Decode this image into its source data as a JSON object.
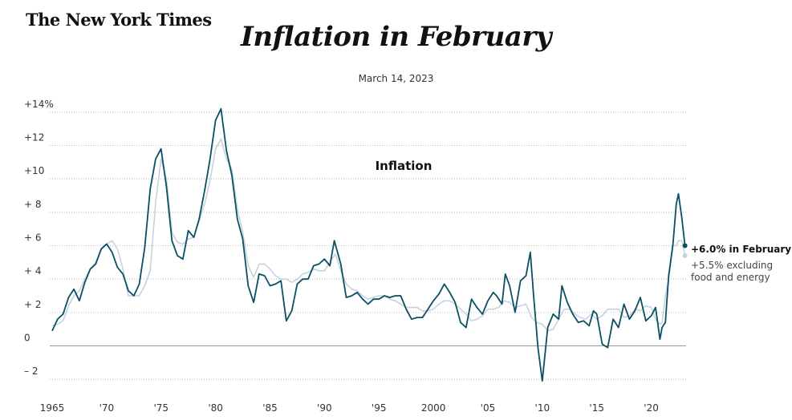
{
  "header": {
    "logo": "The New York Times",
    "title": "Inflation in February",
    "date": "March 14, 2023"
  },
  "chart_data": {
    "type": "line",
    "title": "Inflation in February",
    "chart_label": "Inflation",
    "xlim": [
      1965,
      2023.2
    ],
    "ylim": [
      -3,
      15
    ],
    "ytick_labels": [
      {
        "value": 14,
        "label": "+14%"
      },
      {
        "value": 12,
        "label": "+12"
      },
      {
        "value": 10,
        "label": "+10"
      },
      {
        "value": 8,
        "label": "+ 8"
      },
      {
        "value": 6,
        "label": "+ 6"
      },
      {
        "value": 4,
        "label": "+ 4"
      },
      {
        "value": 2,
        "label": "+ 2"
      },
      {
        "value": 0,
        "label": "0"
      },
      {
        "value": -2,
        "label": "– 2"
      }
    ],
    "xtick_labels": [
      {
        "value": 1965,
        "label": "1965"
      },
      {
        "value": 1970,
        "label": "'70"
      },
      {
        "value": 1975,
        "label": "'75"
      },
      {
        "value": 1980,
        "label": "'80"
      },
      {
        "value": 1985,
        "label": "'85"
      },
      {
        "value": 1990,
        "label": "'90"
      },
      {
        "value": 1995,
        "label": "'95"
      },
      {
        "value": 2000,
        "label": "2000"
      },
      {
        "value": 2005,
        "label": "'05"
      },
      {
        "value": 2010,
        "label": "'10"
      },
      {
        "value": 2015,
        "label": "'15"
      },
      {
        "value": 2020,
        "label": "'20"
      }
    ],
    "grid": true,
    "series": [
      {
        "key": "all",
        "color": "#0b4f63",
        "x": [
          1965.0,
          1965.5,
          1966.0,
          1966.5,
          1967.0,
          1967.5,
          1968.0,
          1968.5,
          1969.0,
          1969.5,
          1970.0,
          1970.5,
          1971.0,
          1971.5,
          1972.0,
          1972.5,
          1973.0,
          1973.5,
          1974.0,
          1974.5,
          1975.0,
          1975.5,
          1976.0,
          1976.5,
          1977.0,
          1977.5,
          1978.0,
          1978.5,
          1979.0,
          1979.5,
          1980.0,
          1980.5,
          1981.0,
          1981.5,
          1982.0,
          1982.5,
          1983.0,
          1983.5,
          1984.0,
          1984.5,
          1985.0,
          1985.5,
          1986.0,
          1986.5,
          1987.0,
          1987.5,
          1988.0,
          1988.5,
          1989.0,
          1989.5,
          1990.0,
          1990.5,
          1990.9,
          1991.5,
          1992.0,
          1992.5,
          1993.0,
          1993.5,
          1994.0,
          1994.5,
          1995.0,
          1995.5,
          1996.0,
          1996.5,
          1997.0,
          1997.5,
          1998.0,
          1998.5,
          1999.0,
          1999.5,
          2000.0,
          2000.5,
          2001.0,
          2001.5,
          2002.0,
          2002.5,
          2003.0,
          2003.5,
          2004.0,
          2004.5,
          2005.0,
          2005.5,
          2005.8,
          2006.3,
          2006.6,
          2007.0,
          2007.5,
          2008.0,
          2008.5,
          2008.9,
          2009.2,
          2009.6,
          2010.0,
          2010.5,
          2011.0,
          2011.5,
          2011.8,
          2012.3,
          2012.8,
          2013.3,
          2013.8,
          2014.3,
          2014.7,
          2015.0,
          2015.5,
          2016.0,
          2016.5,
          2017.0,
          2017.5,
          2018.0,
          2018.5,
          2019.0,
          2019.5,
          2020.0,
          2020.4,
          2020.8,
          2021.0,
          2021.3,
          2021.6,
          2022.0,
          2022.3,
          2022.5,
          2022.8,
          2023.1
        ],
        "values": [
          0.9,
          1.6,
          1.9,
          2.9,
          3.4,
          2.7,
          3.8,
          4.6,
          4.9,
          5.8,
          6.1,
          5.6,
          4.7,
          4.3,
          3.3,
          3.0,
          3.7,
          5.9,
          9.4,
          11.2,
          11.8,
          9.5,
          6.3,
          5.4,
          5.2,
          6.9,
          6.5,
          7.6,
          9.3,
          11.2,
          13.5,
          14.2,
          11.7,
          10.2,
          7.6,
          6.4,
          3.6,
          2.6,
          4.3,
          4.2,
          3.6,
          3.7,
          3.9,
          1.5,
          2.1,
          3.7,
          4.0,
          4.0,
          4.8,
          4.9,
          5.2,
          4.8,
          6.3,
          4.9,
          2.9,
          3.0,
          3.2,
          2.8,
          2.5,
          2.8,
          2.8,
          3.0,
          2.9,
          3.0,
          3.0,
          2.2,
          1.6,
          1.7,
          1.7,
          2.2,
          2.7,
          3.1,
          3.7,
          3.2,
          2.6,
          1.4,
          1.1,
          2.8,
          2.3,
          1.9,
          2.7,
          3.2,
          3.0,
          2.5,
          4.3,
          3.6,
          2.0,
          3.9,
          4.2,
          5.6,
          3.0,
          -0.1,
          -2.1,
          1.1,
          1.9,
          1.6,
          3.6,
          2.6,
          1.9,
          1.4,
          1.5,
          1.2,
          2.1,
          1.9,
          0.1,
          -0.1,
          1.6,
          1.1,
          2.5,
          1.6,
          2.1,
          2.9,
          1.5,
          1.8,
          2.3,
          0.4,
          1.1,
          1.4,
          4.2,
          6.1,
          8.5,
          9.1,
          7.7,
          6.0
        ]
      },
      {
        "key": "core",
        "color": "#c7d2e0",
        "x": [
          1965.0,
          1965.5,
          1966.0,
          1966.5,
          1967.0,
          1967.5,
          1968.0,
          1968.5,
          1969.0,
          1969.5,
          1970.0,
          1970.5,
          1971.0,
          1971.5,
          1972.0,
          1972.5,
          1973.0,
          1973.5,
          1974.0,
          1974.5,
          1975.0,
          1975.5,
          1976.0,
          1976.5,
          1977.0,
          1977.5,
          1978.0,
          1978.5,
          1979.0,
          1979.5,
          1980.0,
          1980.5,
          1981.0,
          1981.5,
          1982.0,
          1982.5,
          1983.0,
          1983.5,
          1984.0,
          1984.5,
          1985.0,
          1985.5,
          1986.0,
          1986.5,
          1987.0,
          1987.5,
          1988.0,
          1988.5,
          1989.0,
          1989.5,
          1990.0,
          1990.5,
          1991.0,
          1991.5,
          1992.0,
          1992.5,
          1993.0,
          1993.5,
          1994.0,
          1994.5,
          1995.0,
          1995.5,
          1996.0,
          1996.5,
          1997.0,
          1997.5,
          1998.0,
          1998.5,
          1999.0,
          1999.5,
          2000.0,
          2000.5,
          2001.0,
          2001.5,
          2002.0,
          2002.5,
          2003.0,
          2003.5,
          2004.0,
          2004.5,
          2005.0,
          2005.5,
          2006.0,
          2006.5,
          2007.0,
          2007.5,
          2008.0,
          2008.5,
          2009.0,
          2009.5,
          2010.0,
          2010.5,
          2011.0,
          2011.5,
          2012.0,
          2012.5,
          2013.0,
          2013.5,
          2014.0,
          2014.5,
          2015.0,
          2015.5,
          2016.0,
          2016.5,
          2017.0,
          2017.5,
          2018.0,
          2018.5,
          2019.0,
          2019.5,
          2020.0,
          2020.4,
          2020.8,
          2021.0,
          2021.3,
          2021.6,
          2022.0,
          2022.3,
          2022.5,
          2022.8,
          2023.1
        ],
        "values": [
          1.2,
          1.3,
          1.5,
          2.4,
          3.0,
          3.3,
          4.0,
          4.6,
          5.0,
          5.8,
          6.1,
          6.3,
          5.8,
          4.6,
          3.0,
          3.0,
          3.0,
          3.6,
          4.5,
          8.6,
          11.2,
          10.0,
          6.8,
          6.2,
          6.1,
          6.4,
          6.5,
          7.5,
          8.5,
          9.9,
          11.8,
          12.4,
          11.2,
          10.6,
          8.2,
          6.8,
          4.8,
          4.1,
          4.9,
          4.9,
          4.6,
          4.2,
          4.0,
          4.0,
          3.8,
          4.0,
          4.3,
          4.4,
          4.6,
          4.5,
          4.5,
          5.0,
          5.5,
          4.5,
          3.7,
          3.4,
          3.3,
          3.0,
          2.8,
          2.9,
          3.0,
          3.0,
          2.8,
          2.7,
          2.5,
          2.3,
          2.3,
          2.3,
          2.1,
          2.1,
          2.2,
          2.5,
          2.7,
          2.7,
          2.5,
          2.2,
          1.9,
          1.5,
          1.6,
          1.8,
          2.2,
          2.2,
          2.3,
          2.7,
          2.6,
          2.3,
          2.4,
          2.5,
          1.7,
          1.4,
          1.3,
          0.9,
          1.0,
          1.6,
          2.2,
          2.2,
          1.9,
          1.7,
          1.6,
          1.9,
          1.6,
          1.8,
          2.2,
          2.2,
          2.2,
          1.7,
          1.8,
          2.2,
          2.1,
          2.4,
          2.3,
          1.6,
          1.3,
          1.4,
          3.0,
          4.0,
          6.0,
          6.0,
          6.3,
          6.3,
          5.5
        ]
      }
    ],
    "annotations": {
      "all_label": "+6.0% in February",
      "core_label_line1": "+5.5% excluding",
      "core_label_line2": "food and energy",
      "all_end_value": 6.0,
      "core_end_value": 5.5
    }
  }
}
